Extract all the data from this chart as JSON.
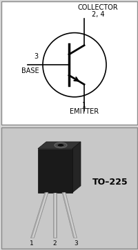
{
  "bg_color": "#d8d8d8",
  "top_bg": "#ffffff",
  "bottom_bg": "#c8c8c8",
  "collector_label": "COLLECTOR",
  "collector_pin": "2, 4",
  "base_label": "BASE",
  "base_pin": "3",
  "emitter_label": "EMITTER",
  "emitter_pin": "1",
  "package_label": "TO–225",
  "pin_labels": [
    "1",
    "2",
    "3"
  ],
  "text_color": "#000000",
  "line_color": "#000000",
  "border_color": "#888888",
  "body_dark": "#1a1a1a",
  "body_mid": "#2e2e2e",
  "body_light": "#3d3d3d",
  "lead_color": "#aaaaaa",
  "lead_highlight": "#dddddd"
}
